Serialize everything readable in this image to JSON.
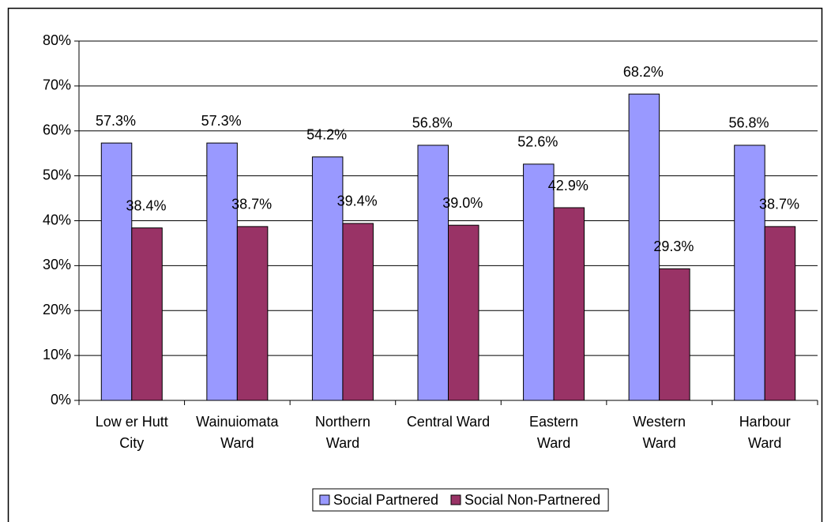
{
  "chart_data": {
    "type": "bar",
    "categories": [
      "Low er Hutt\nCity",
      "Wainuiomata\nWard",
      "Northern\nWard",
      "Central Ward",
      "Eastern\nWard",
      "Western\nWard",
      "Harbour\nWard"
    ],
    "series": [
      {
        "name": "Social Partnered",
        "color": "#9999ff",
        "values": [
          57.3,
          57.3,
          54.2,
          56.8,
          52.6,
          68.2,
          56.8
        ],
        "value_labels": [
          "57.3%",
          "57.3%",
          "54.2%",
          "56.8%",
          "52.6%",
          "68.2%",
          "56.8%"
        ]
      },
      {
        "name": "Social Non-Partnered",
        "color": "#993366",
        "values": [
          38.4,
          38.7,
          39.4,
          39.0,
          42.9,
          29.3,
          38.7
        ],
        "value_labels": [
          "38.4%",
          "38.7%",
          "39.4%",
          "39.0%",
          "42.9%",
          "29.3%",
          "38.7%"
        ]
      }
    ],
    "ylim": [
      0,
      80
    ],
    "yticks": [
      {
        "value": 0,
        "label": "0%"
      },
      {
        "value": 10,
        "label": "10%"
      },
      {
        "value": 20,
        "label": "20%"
      },
      {
        "value": 30,
        "label": "30%"
      },
      {
        "value": 40,
        "label": "40%"
      },
      {
        "value": 50,
        "label": "50%"
      },
      {
        "value": 60,
        "label": "60%"
      },
      {
        "value": 70,
        "label": "70%"
      },
      {
        "value": 80,
        "label": "80%"
      }
    ],
    "grid": true,
    "legend": "bottom"
  }
}
